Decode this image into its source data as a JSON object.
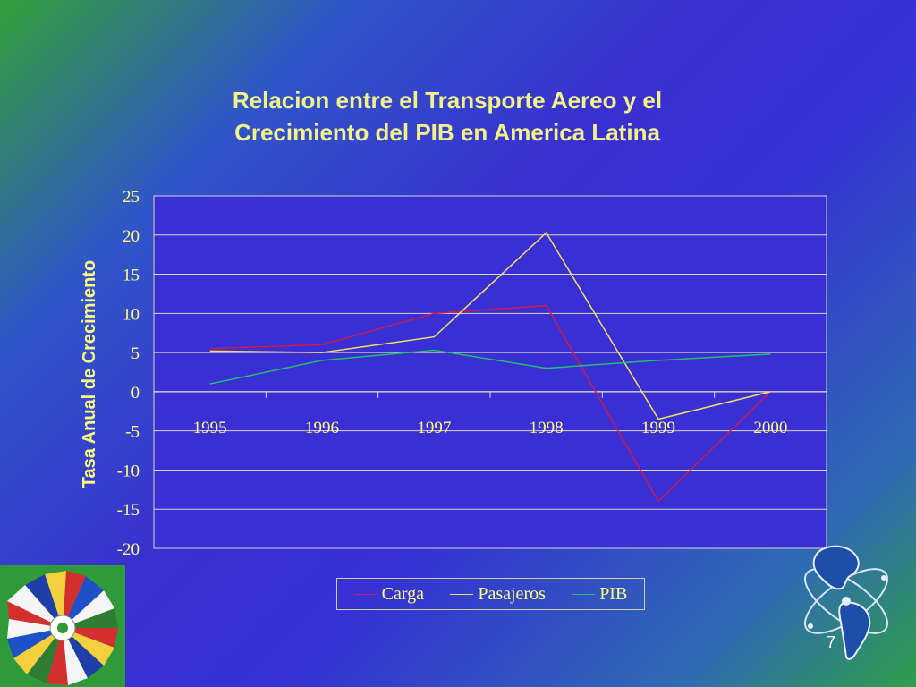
{
  "slide": {
    "number": "7"
  },
  "chart_data": {
    "type": "line",
    "title_lines": [
      "Relacion entre el Transporte Aereo y el",
      "Crecimiento del PIB en America Latina"
    ],
    "xlabel": "",
    "ylabel": "Tasa Anual de Crecimiento",
    "categories": [
      "1995",
      "1996",
      "1997",
      "1998",
      "1999",
      "2000"
    ],
    "ylim": [
      -20,
      25
    ],
    "yticks": [
      25,
      20,
      15,
      10,
      5,
      0,
      -5,
      -10,
      -15,
      -20
    ],
    "grid": true,
    "legend_position": "bottom",
    "series": [
      {
        "name": "Carga",
        "color": "#cc1a4a",
        "values": [
          5.5,
          6,
          10,
          11,
          -14,
          0
        ]
      },
      {
        "name": "Pasajeros",
        "color": "#f0e060",
        "values": [
          5.2,
          5,
          7,
          20.3,
          -3.5,
          0
        ]
      },
      {
        "name": "PIB",
        "color": "#20c070",
        "values": [
          1,
          4,
          5.3,
          3,
          4,
          4.8
        ]
      }
    ]
  },
  "icons": {
    "left_logo": "oas-flags-emblem-icon",
    "right_logo": "globe-americas-orbit-icon"
  }
}
